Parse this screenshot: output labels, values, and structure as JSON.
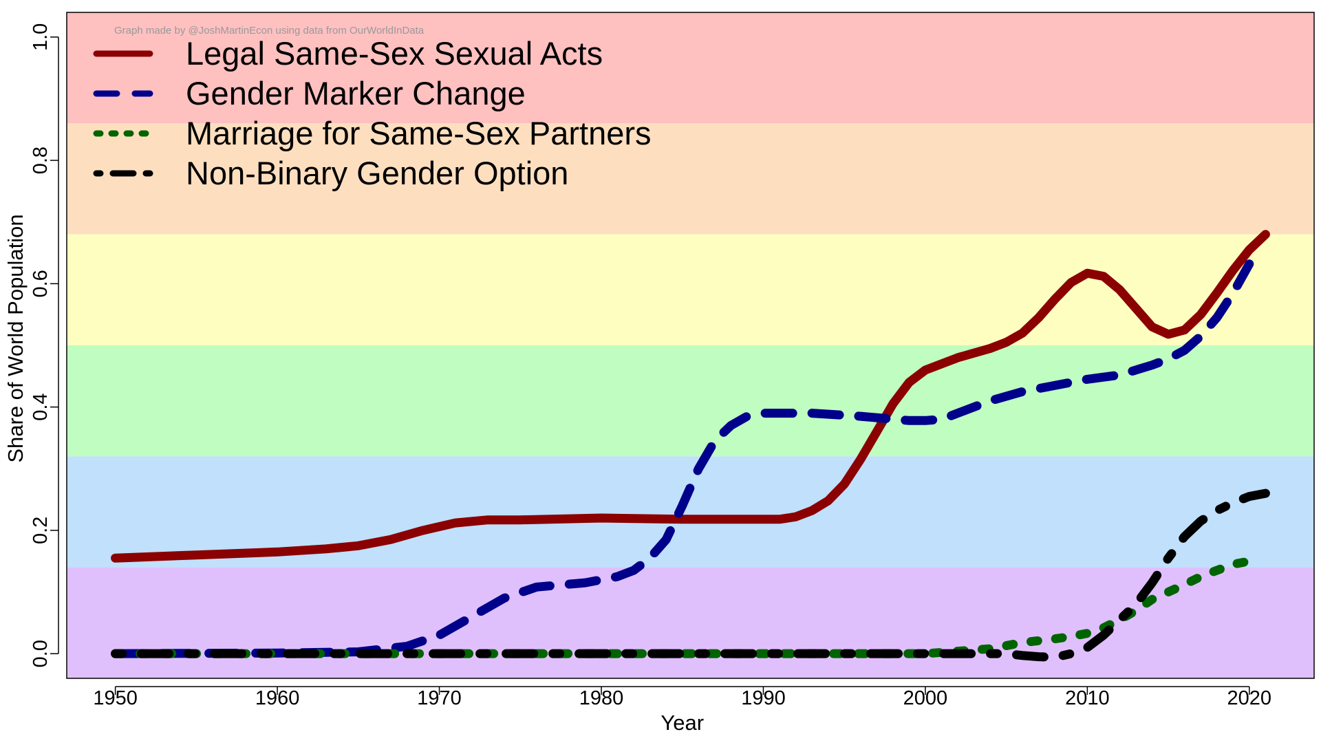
{
  "chart_data": {
    "type": "line",
    "credit": "Graph made by @JoshMartinEcon using data from OurWorldInData",
    "xlabel": "Year",
    "ylabel": "Share of World Population",
    "xlim": [
      1947,
      2024
    ],
    "ylim": [
      -0.04,
      1.04
    ],
    "x_ticks": [
      "1950",
      "1960",
      "1970",
      "1980",
      "1990",
      "2000",
      "2010",
      "2020"
    ],
    "y_ticks": [
      "0.0",
      "0.2",
      "0.4",
      "0.6",
      "0.8",
      "1.0"
    ],
    "background_bands": [
      {
        "from": 0.86,
        "to": 1.04,
        "color": "#ffc0c0"
      },
      {
        "from": 0.68,
        "to": 0.86,
        "color": "#fddfc0"
      },
      {
        "from": 0.5,
        "to": 0.68,
        "color": "#fefec0"
      },
      {
        "from": 0.32,
        "to": 0.5,
        "color": "#c0fdc0"
      },
      {
        "from": 0.14,
        "to": 0.32,
        "color": "#c0e0fc"
      },
      {
        "from": -0.04,
        "to": 0.14,
        "color": "#e0c0fc"
      }
    ],
    "grid": false,
    "legend_position": "top-left",
    "series": [
      {
        "name": "Legal Same-Sex Sexual Acts",
        "color": "#8b0000",
        "dash": "solid",
        "x": [
          1950,
          1955,
          1960,
          1963,
          1965,
          1967,
          1969,
          1971,
          1973,
          1975,
          1980,
          1985,
          1990,
          1991,
          1992,
          1993,
          1994,
          1995,
          1996,
          1997,
          1998,
          1999,
          2000,
          2002,
          2004,
          2005,
          2006,
          2007,
          2008,
          2009,
          2010,
          2011,
          2012,
          2013,
          2014,
          2015,
          2016,
          2017,
          2018,
          2019,
          2020,
          2021
        ],
        "values": [
          0.155,
          0.16,
          0.165,
          0.17,
          0.175,
          0.185,
          0.2,
          0.212,
          0.217,
          0.217,
          0.22,
          0.218,
          0.218,
          0.218,
          0.222,
          0.232,
          0.248,
          0.275,
          0.315,
          0.36,
          0.405,
          0.44,
          0.46,
          0.48,
          0.495,
          0.505,
          0.52,
          0.545,
          0.575,
          0.602,
          0.617,
          0.612,
          0.59,
          0.56,
          0.53,
          0.518,
          0.525,
          0.55,
          0.585,
          0.622,
          0.655,
          0.68
        ]
      },
      {
        "name": "Gender Marker Change",
        "color": "#00008b",
        "dash": "long-dash",
        "x": [
          1950,
          1960,
          1965,
          1968,
          1970,
          1972,
          1974,
          1976,
          1979,
          1981,
          1982,
          1983,
          1984,
          1985,
          1986,
          1987,
          1988,
          1989,
          1990,
          1993,
          1996,
          1999,
          2000,
          2001,
          2002,
          2004,
          2006,
          2008,
          2010,
          2012,
          2014,
          2015,
          2016,
          2017,
          2018,
          2019,
          2020
        ],
        "values": [
          0.0,
          0.001,
          0.003,
          0.012,
          0.03,
          0.06,
          0.09,
          0.108,
          0.115,
          0.125,
          0.135,
          0.155,
          0.185,
          0.24,
          0.3,
          0.345,
          0.37,
          0.385,
          0.39,
          0.39,
          0.385,
          0.378,
          0.378,
          0.38,
          0.39,
          0.41,
          0.425,
          0.435,
          0.445,
          0.452,
          0.468,
          0.478,
          0.492,
          0.515,
          0.545,
          0.585,
          0.632
        ]
      },
      {
        "name": "Marriage for Same-Sex Partners",
        "color": "#006400",
        "dash": "dotted",
        "x": [
          1950,
          1955,
          1960,
          1965,
          1970,
          1975,
          1980,
          1985,
          1990,
          1995,
          2000,
          2002,
          2004,
          2005,
          2006,
          2007,
          2008,
          2009,
          2010,
          2011,
          2012,
          2013,
          2014,
          2015,
          2016,
          2017,
          2018,
          2019,
          2020
        ],
        "values": [
          0.0,
          0.0,
          0.0,
          0.0,
          0.0,
          0.0,
          0.0,
          0.0,
          0.0,
          0.0,
          0.0,
          0.004,
          0.008,
          0.013,
          0.018,
          0.021,
          0.024,
          0.028,
          0.033,
          0.042,
          0.055,
          0.07,
          0.088,
          0.1,
          0.112,
          0.125,
          0.135,
          0.145,
          0.15
        ]
      },
      {
        "name": "Non-Binary Gender Option",
        "color": "#000000",
        "dash": "dash-dot",
        "x": [
          1950,
          1955,
          1960,
          1965,
          1970,
          1975,
          1980,
          1985,
          1990,
          1995,
          2000,
          2003,
          2005,
          2006,
          2007,
          2008,
          2009,
          2010,
          2011,
          2012,
          2013,
          2014,
          2015,
          2016,
          2017,
          2018,
          2019,
          2020,
          2021
        ],
        "values": [
          0.0,
          0.0,
          0.0,
          0.0,
          0.0,
          0.0,
          0.0,
          0.0,
          0.0,
          0.0,
          0.0,
          0.0,
          0.0,
          -0.003,
          -0.005,
          -0.006,
          0.0,
          0.01,
          0.03,
          0.055,
          0.08,
          0.115,
          0.155,
          0.19,
          0.215,
          0.232,
          0.245,
          0.255,
          0.26
        ]
      }
    ]
  }
}
